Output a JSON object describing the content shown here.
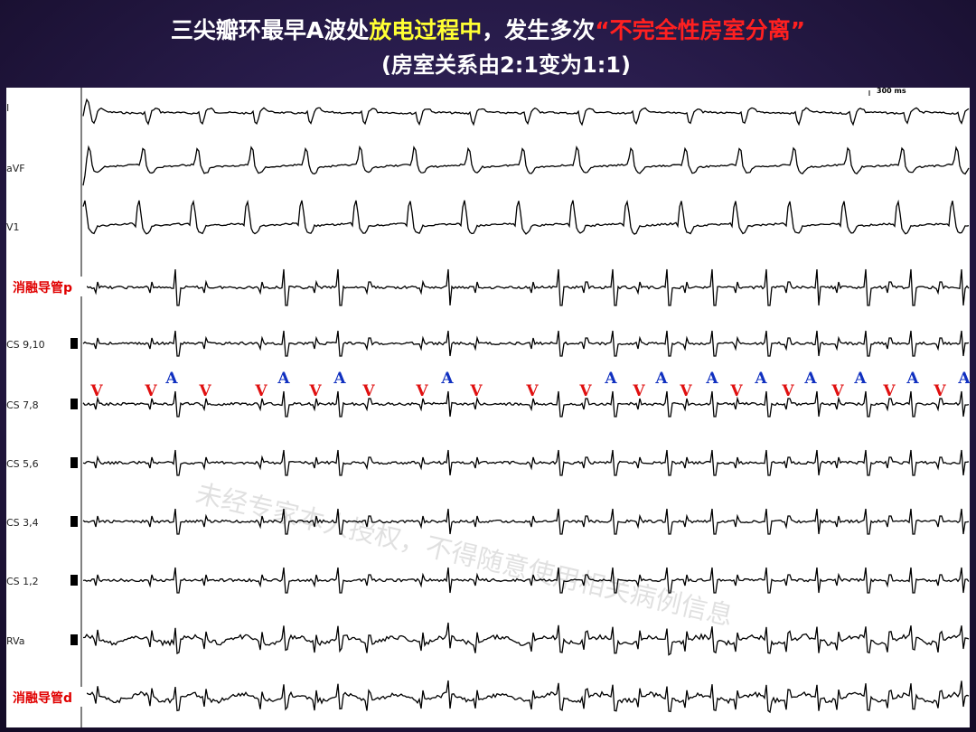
{
  "header": {
    "title": {
      "part1": "三尖瓣环最早A波处",
      "part2": "放电过程中",
      "part3": "，发生多次",
      "part4": "“不完全性房室分离”"
    },
    "subtitle": "(房室关系由2:1变为1:1)"
  },
  "scale_label": "300 ms",
  "channels": [
    "I",
    "aVF",
    "V1",
    "消融导管p",
    "CS 9,10",
    "CS 7,8",
    "CS 5,6",
    "CS 3,4",
    "CS 1,2",
    "RVa",
    "消融导管d"
  ],
  "markers": [
    "V",
    "V",
    "A",
    "V",
    "V",
    "A",
    "V",
    "A",
    "V",
    "V",
    "A",
    "V",
    "V",
    "V",
    "A",
    "V",
    "A",
    "V",
    "A",
    "V",
    "A",
    "V",
    "A",
    "V",
    "A",
    "V",
    "A",
    "V",
    "A"
  ],
  "watermark": "未经专家本人授权，不得随意使用相关病例信息"
}
